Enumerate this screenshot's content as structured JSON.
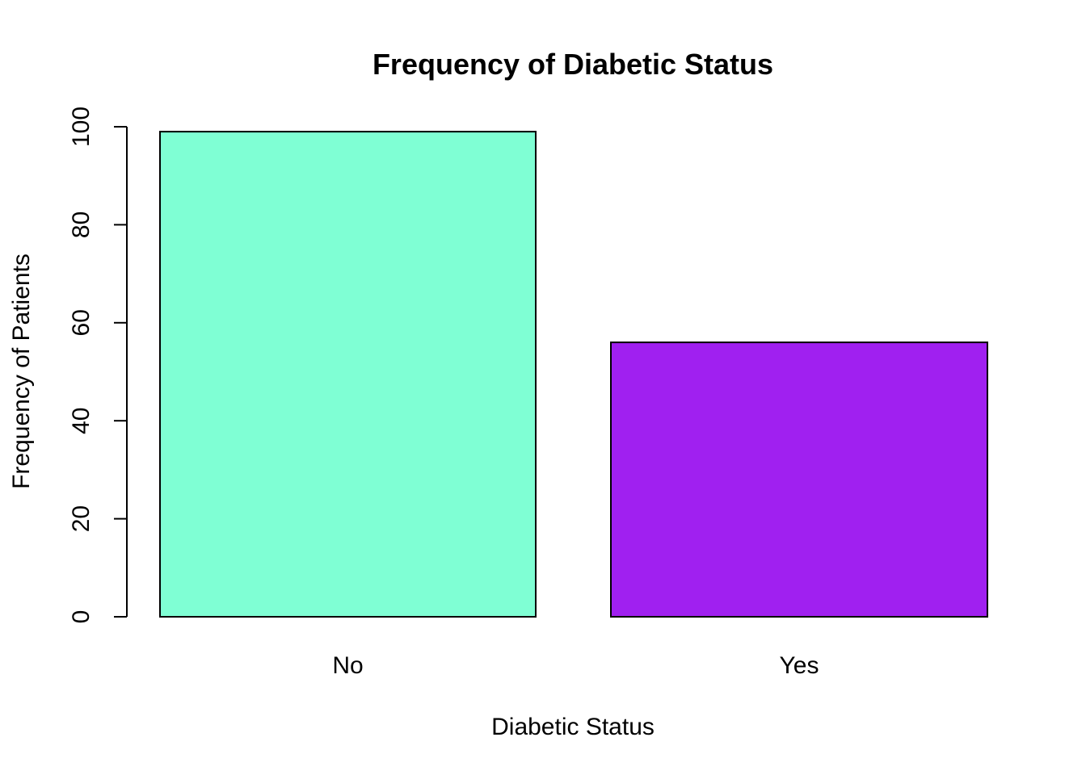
{
  "chart_data": {
    "type": "bar",
    "title": "Frequency of Diabetic Status",
    "xlabel": "Diabetic Status",
    "ylabel": "Frequency of Patients",
    "categories": [
      "No",
      "Yes"
    ],
    "values": [
      99,
      56
    ],
    "colors": [
      "#7FFFD4",
      "#A020F0"
    ],
    "ylim": [
      0,
      100
    ],
    "yticks": [
      0,
      20,
      40,
      60,
      80,
      100
    ],
    "grid": false,
    "legend": "none"
  }
}
